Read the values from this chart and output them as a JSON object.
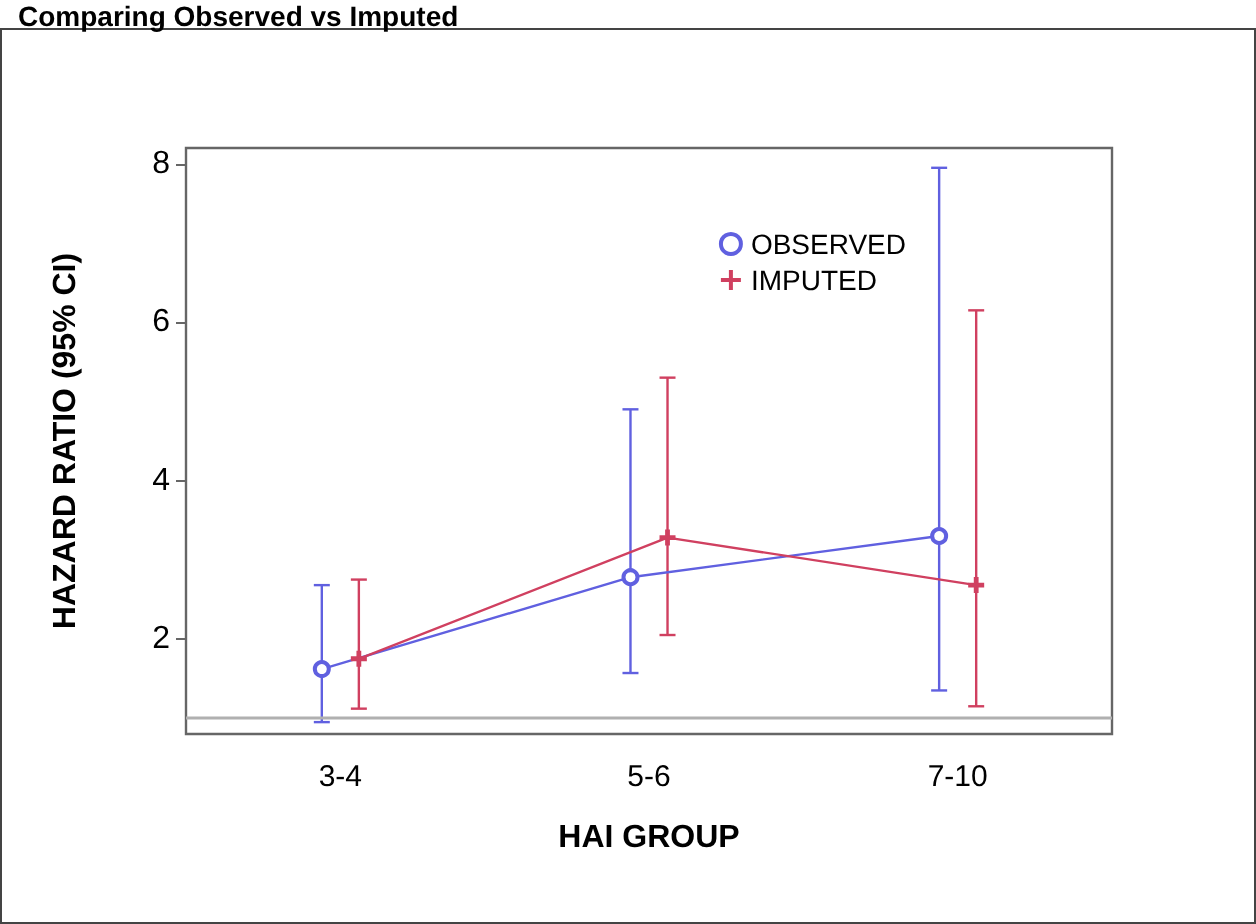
{
  "chart_data": {
    "type": "line",
    "title": "Comparing Observed vs Imputed",
    "xlabel": "HAI GROUP",
    "ylabel": "HAZARD RATIO (95% CI)",
    "categories": [
      "3-4",
      "5-6",
      "7-10"
    ],
    "series": [
      {
        "name": "OBSERVED",
        "color": "#6060e0",
        "marker": "circle",
        "values": [
          1.62,
          2.78,
          3.3
        ],
        "errors": [
          [
            0.95,
            2.68
          ],
          [
            1.57,
            4.9
          ],
          [
            1.35,
            7.95
          ]
        ]
      },
      {
        "name": "IMPUTED",
        "color": "#d04060",
        "marker": "cross",
        "values": [
          1.75,
          3.28,
          2.68
        ],
        "errors": [
          [
            1.12,
            2.75
          ],
          [
            2.05,
            5.3
          ],
          [
            1.15,
            6.15
          ]
        ]
      }
    ],
    "ylim": [
      0.8,
      8.2
    ],
    "yticks": [
      2,
      4,
      6,
      8
    ],
    "grid": false,
    "legend": "top right",
    "ref_lines": [
      {
        "axis": "y",
        "value": 1,
        "color": "#b0b0b0"
      }
    ]
  }
}
